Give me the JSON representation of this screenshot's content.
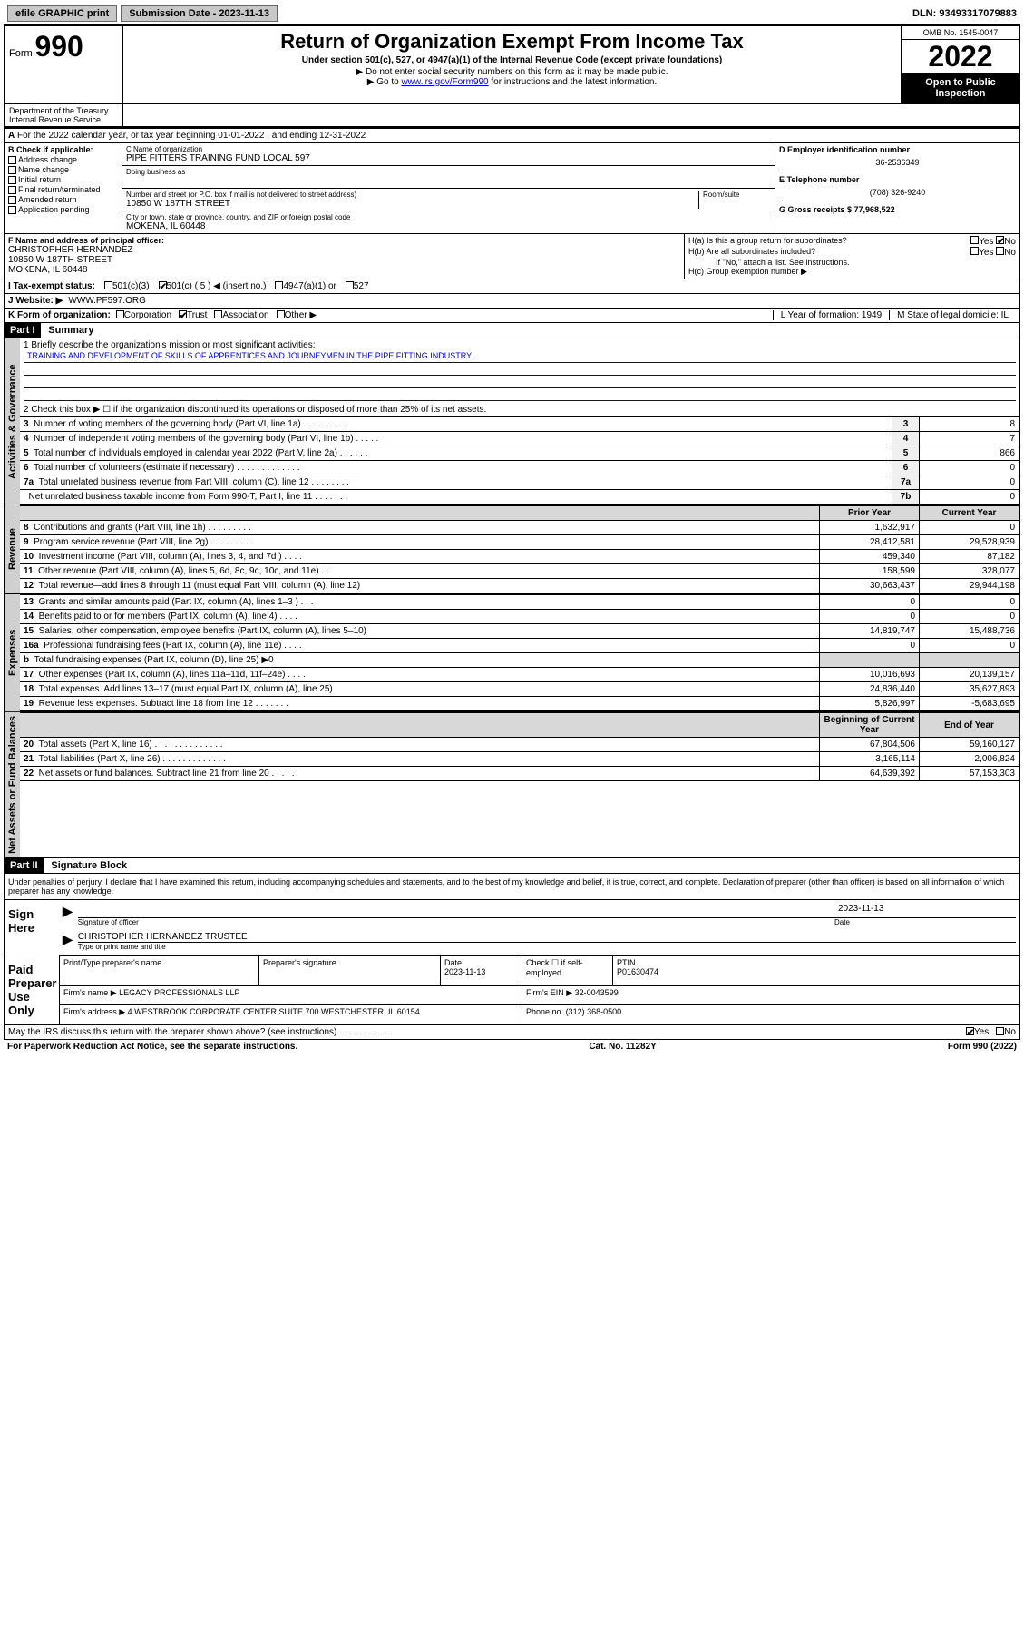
{
  "top": {
    "efile": "efile GRAPHIC print",
    "sub_label": "Submission Date - 2023-11-13",
    "dln": "DLN: 93493317079883"
  },
  "header": {
    "form_word": "Form",
    "form_num": "990",
    "title": "Return of Organization Exempt From Income Tax",
    "sub1": "Under section 501(c), 527, or 4947(a)(1) of the Internal Revenue Code (except private foundations)",
    "sub2": "▶ Do not enter social security numbers on this form as it may be made public.",
    "sub3_pre": "▶ Go to ",
    "sub3_link": "www.irs.gov/Form990",
    "sub3_post": " for instructions and the latest information.",
    "omb": "OMB No. 1545-0047",
    "year": "2022",
    "open_pub": "Open to Public Inspection",
    "dept": "Department of the Treasury Internal Revenue Service"
  },
  "line_a": "For the 2022 calendar year, or tax year beginning 01-01-2022   , and ending 12-31-2022",
  "col_b": {
    "label": "B Check if applicable:",
    "items": [
      "Address change",
      "Name change",
      "Initial return",
      "Final return/terminated",
      "Amended return",
      "Application pending"
    ]
  },
  "org": {
    "name_label": "C Name of organization",
    "name": "PIPE FITTERS TRAINING FUND LOCAL 597",
    "dba_label": "Doing business as",
    "addr_label": "Number and street (or P.O. box if mail is not delivered to street address)",
    "room_label": "Room/suite",
    "addr": "10850 W 187TH STREET",
    "city_label": "City or town, state or province, country, and ZIP or foreign postal code",
    "city": "MOKENA, IL  60448"
  },
  "right": {
    "ein_label": "D Employer identification number",
    "ein": "36-2536349",
    "phone_label": "E Telephone number",
    "phone": "(708) 326-9240",
    "gross_label": "G Gross receipts $ 77,968,522"
  },
  "section_f": {
    "label": "F Name and address of principal officer:",
    "name": "CHRISTOPHER HERNANDEZ",
    "addr1": "10850 W 187TH STREET",
    "addr2": "MOKENA, IL  60448"
  },
  "section_h": {
    "ha": "H(a)  Is this a group return for subordinates?",
    "hb": "H(b)  Are all subordinates included?",
    "hb_note": "If \"No,\" attach a list. See instructions.",
    "hc": "H(c)  Group exemption number ▶",
    "yes": "Yes",
    "no": "No"
  },
  "tax_status": {
    "label": "I    Tax-exempt status:",
    "o1": "501(c)(3)",
    "o2": "501(c) ( 5 ) ◀ (insert no.)",
    "o3": "4947(a)(1) or",
    "o4": "527"
  },
  "website": {
    "label": "J    Website: ▶",
    "val": "WWW.PF597.ORG"
  },
  "line_k": {
    "label": "K Form of organization:",
    "opts": [
      "Corporation",
      "Trust",
      "Association",
      "Other ▶"
    ],
    "year_label": "L Year of formation: 1949",
    "state_label": "M State of legal domicile: IL"
  },
  "part1": {
    "hdr": "Part I",
    "title": "Summary",
    "q1": "1  Briefly describe the organization's mission or most significant activities:",
    "mission": "TRAINING AND DEVELOPMENT OF SKILLS OF APPRENTICES AND JOURNEYMEN IN THE PIPE FITTING INDUSTRY.",
    "q2": "2   Check this box ▶ ☐  if the organization discontinued its operations or disposed of more than 25% of its net assets.",
    "vert_act": "Activities & Governance",
    "vert_rev": "Revenue",
    "vert_exp": "Expenses",
    "vert_net": "Net Assets or Fund Balances",
    "rows_gov": [
      {
        "n": "3",
        "d": "Number of voting members of the governing body (Part VI, line 1a)   .    .    .    .    .    .    .    .    .",
        "box": "3",
        "v": "8"
      },
      {
        "n": "4",
        "d": "Number of independent voting members of the governing body (Part VI, line 1b)  .    .    .    .    .",
        "box": "4",
        "v": "7"
      },
      {
        "n": "5",
        "d": "Total number of individuals employed in calendar year 2022 (Part V, line 2a)   .    .    .    .    .    .",
        "box": "5",
        "v": "866"
      },
      {
        "n": "6",
        "d": "Total number of volunteers (estimate if necessary)  .    .    .    .    .    .    .    .    .    .    .    .    .",
        "box": "6",
        "v": "0"
      },
      {
        "n": "7a",
        "d": "Total unrelated business revenue from Part VIII, column (C), line 12  .    .    .    .    .    .    .    .",
        "box": "7a",
        "v": "0"
      },
      {
        "n": "",
        "d": "Net unrelated business taxable income from Form 990-T, Part I, line 11   .    .    .    .    .    .    .",
        "box": "7b",
        "v": "0"
      }
    ],
    "year_hdr1": "Prior Year",
    "year_hdr2": "Current Year",
    "rows_rev": [
      {
        "n": "8",
        "d": "Contributions and grants (Part VIII, line 1h)   .    .    .    .    .    .    .    .    .",
        "py": "1,632,917",
        "cy": "0"
      },
      {
        "n": "9",
        "d": "Program service revenue (Part VIII, line 2g)   .    .    .    .    .    .    .    .    .",
        "py": "28,412,581",
        "cy": "29,528,939"
      },
      {
        "n": "10",
        "d": "Investment income (Part VIII, column (A), lines 3, 4, and 7d )   .    .    .    .",
        "py": "459,340",
        "cy": "87,182"
      },
      {
        "n": "11",
        "d": "Other revenue (Part VIII, column (A), lines 5, 6d, 8c, 9c, 10c, and 11e)   .    .",
        "py": "158,599",
        "cy": "328,077"
      },
      {
        "n": "12",
        "d": "Total revenue—add lines 8 through 11 (must equal Part VIII, column (A), line 12)",
        "py": "30,663,437",
        "cy": "29,944,198"
      }
    ],
    "rows_exp": [
      {
        "n": "13",
        "d": "Grants and similar amounts paid (Part IX, column (A), lines 1–3 )  .    .    .",
        "py": "0",
        "cy": "0"
      },
      {
        "n": "14",
        "d": "Benefits paid to or for members (Part IX, column (A), line 4)  .    .    .    .",
        "py": "0",
        "cy": "0"
      },
      {
        "n": "15",
        "d": "Salaries, other compensation, employee benefits (Part IX, column (A), lines 5–10)",
        "py": "14,819,747",
        "cy": "15,488,736"
      },
      {
        "n": "16a",
        "d": "Professional fundraising fees (Part IX, column (A), line 11e)  .    .    .    .",
        "py": "0",
        "cy": "0"
      },
      {
        "n": "b",
        "d": "Total fundraising expenses (Part IX, column (D), line 25) ▶0",
        "py": "",
        "cy": ""
      },
      {
        "n": "17",
        "d": "Other expenses (Part IX, column (A), lines 11a–11d, 11f–24e)  .    .    .    .",
        "py": "10,016,693",
        "cy": "20,139,157"
      },
      {
        "n": "18",
        "d": "Total expenses. Add lines 13–17 (must equal Part IX, column (A), line 25)",
        "py": "24,836,440",
        "cy": "35,627,893"
      },
      {
        "n": "19",
        "d": "Revenue less expenses. Subtract line 18 from line 12  .    .    .    .    .    .    .",
        "py": "5,826,997",
        "cy": "-5,683,695"
      }
    ],
    "net_hdr1": "Beginning of Current Year",
    "net_hdr2": "End of Year",
    "rows_net": [
      {
        "n": "20",
        "d": "Total assets (Part X, line 16)  .    .    .    .    .    .    .    .    .    .    .    .    .    .",
        "py": "67,804,506",
        "cy": "59,160,127"
      },
      {
        "n": "21",
        "d": "Total liabilities (Part X, line 26)  .    .    .    .    .    .    .    .    .    .    .    .    .",
        "py": "3,165,114",
        "cy": "2,006,824"
      },
      {
        "n": "22",
        "d": "Net assets or fund balances. Subtract line 21 from line 20  .    .    .    .    .",
        "py": "64,639,392",
        "cy": "57,153,303"
      }
    ]
  },
  "part2": {
    "hdr": "Part II",
    "title": "Signature Block",
    "decl": "Under penalties of perjury, I declare that I have examined this return, including accompanying schedules and statements, and to the best of my knowledge and belief, it is true, correct, and complete. Declaration of preparer (other than officer) is based on all information of which preparer has any knowledge.",
    "sign_here": "Sign Here",
    "sig_officer": "Signature of officer",
    "sig_date": "2023-11-13",
    "date_label": "Date",
    "officer_name": "CHRISTOPHER HERNANDEZ  TRUSTEE",
    "type_name": "Type or print name and title",
    "paid": "Paid Preparer Use Only",
    "prep_name_label": "Print/Type preparer's name",
    "prep_sig_label": "Preparer's signature",
    "prep_date_label": "Date",
    "prep_date": "2023-11-13",
    "check_self": "Check ☐ if self-employed",
    "ptin_label": "PTIN",
    "ptin": "P01630474",
    "firm_name_label": "Firm's name    ▶",
    "firm_name": "LEGACY PROFESSIONALS LLP",
    "firm_ein_label": "Firm's EIN ▶",
    "firm_ein": "32-0043599",
    "firm_addr_label": "Firm's address ▶",
    "firm_addr": "4 WESTBROOK CORPORATE CENTER SUITE 700 WESTCHESTER, IL  60154",
    "firm_phone_label": "Phone no.",
    "firm_phone": "(312) 368-0500",
    "discuss": "May the IRS discuss this return with the preparer shown above? (see instructions)    .    .    .    .    .    .    .    .    .    .    .",
    "yes": "Yes",
    "no": "No"
  },
  "footer": {
    "pra": "For Paperwork Reduction Act Notice, see the separate instructions.",
    "cat": "Cat. No. 11282Y",
    "form": "Form 990 (2022)"
  },
  "colors": {
    "link": "#0000cc",
    "header_black": "#000000",
    "shade": "#d0d0d0"
  }
}
